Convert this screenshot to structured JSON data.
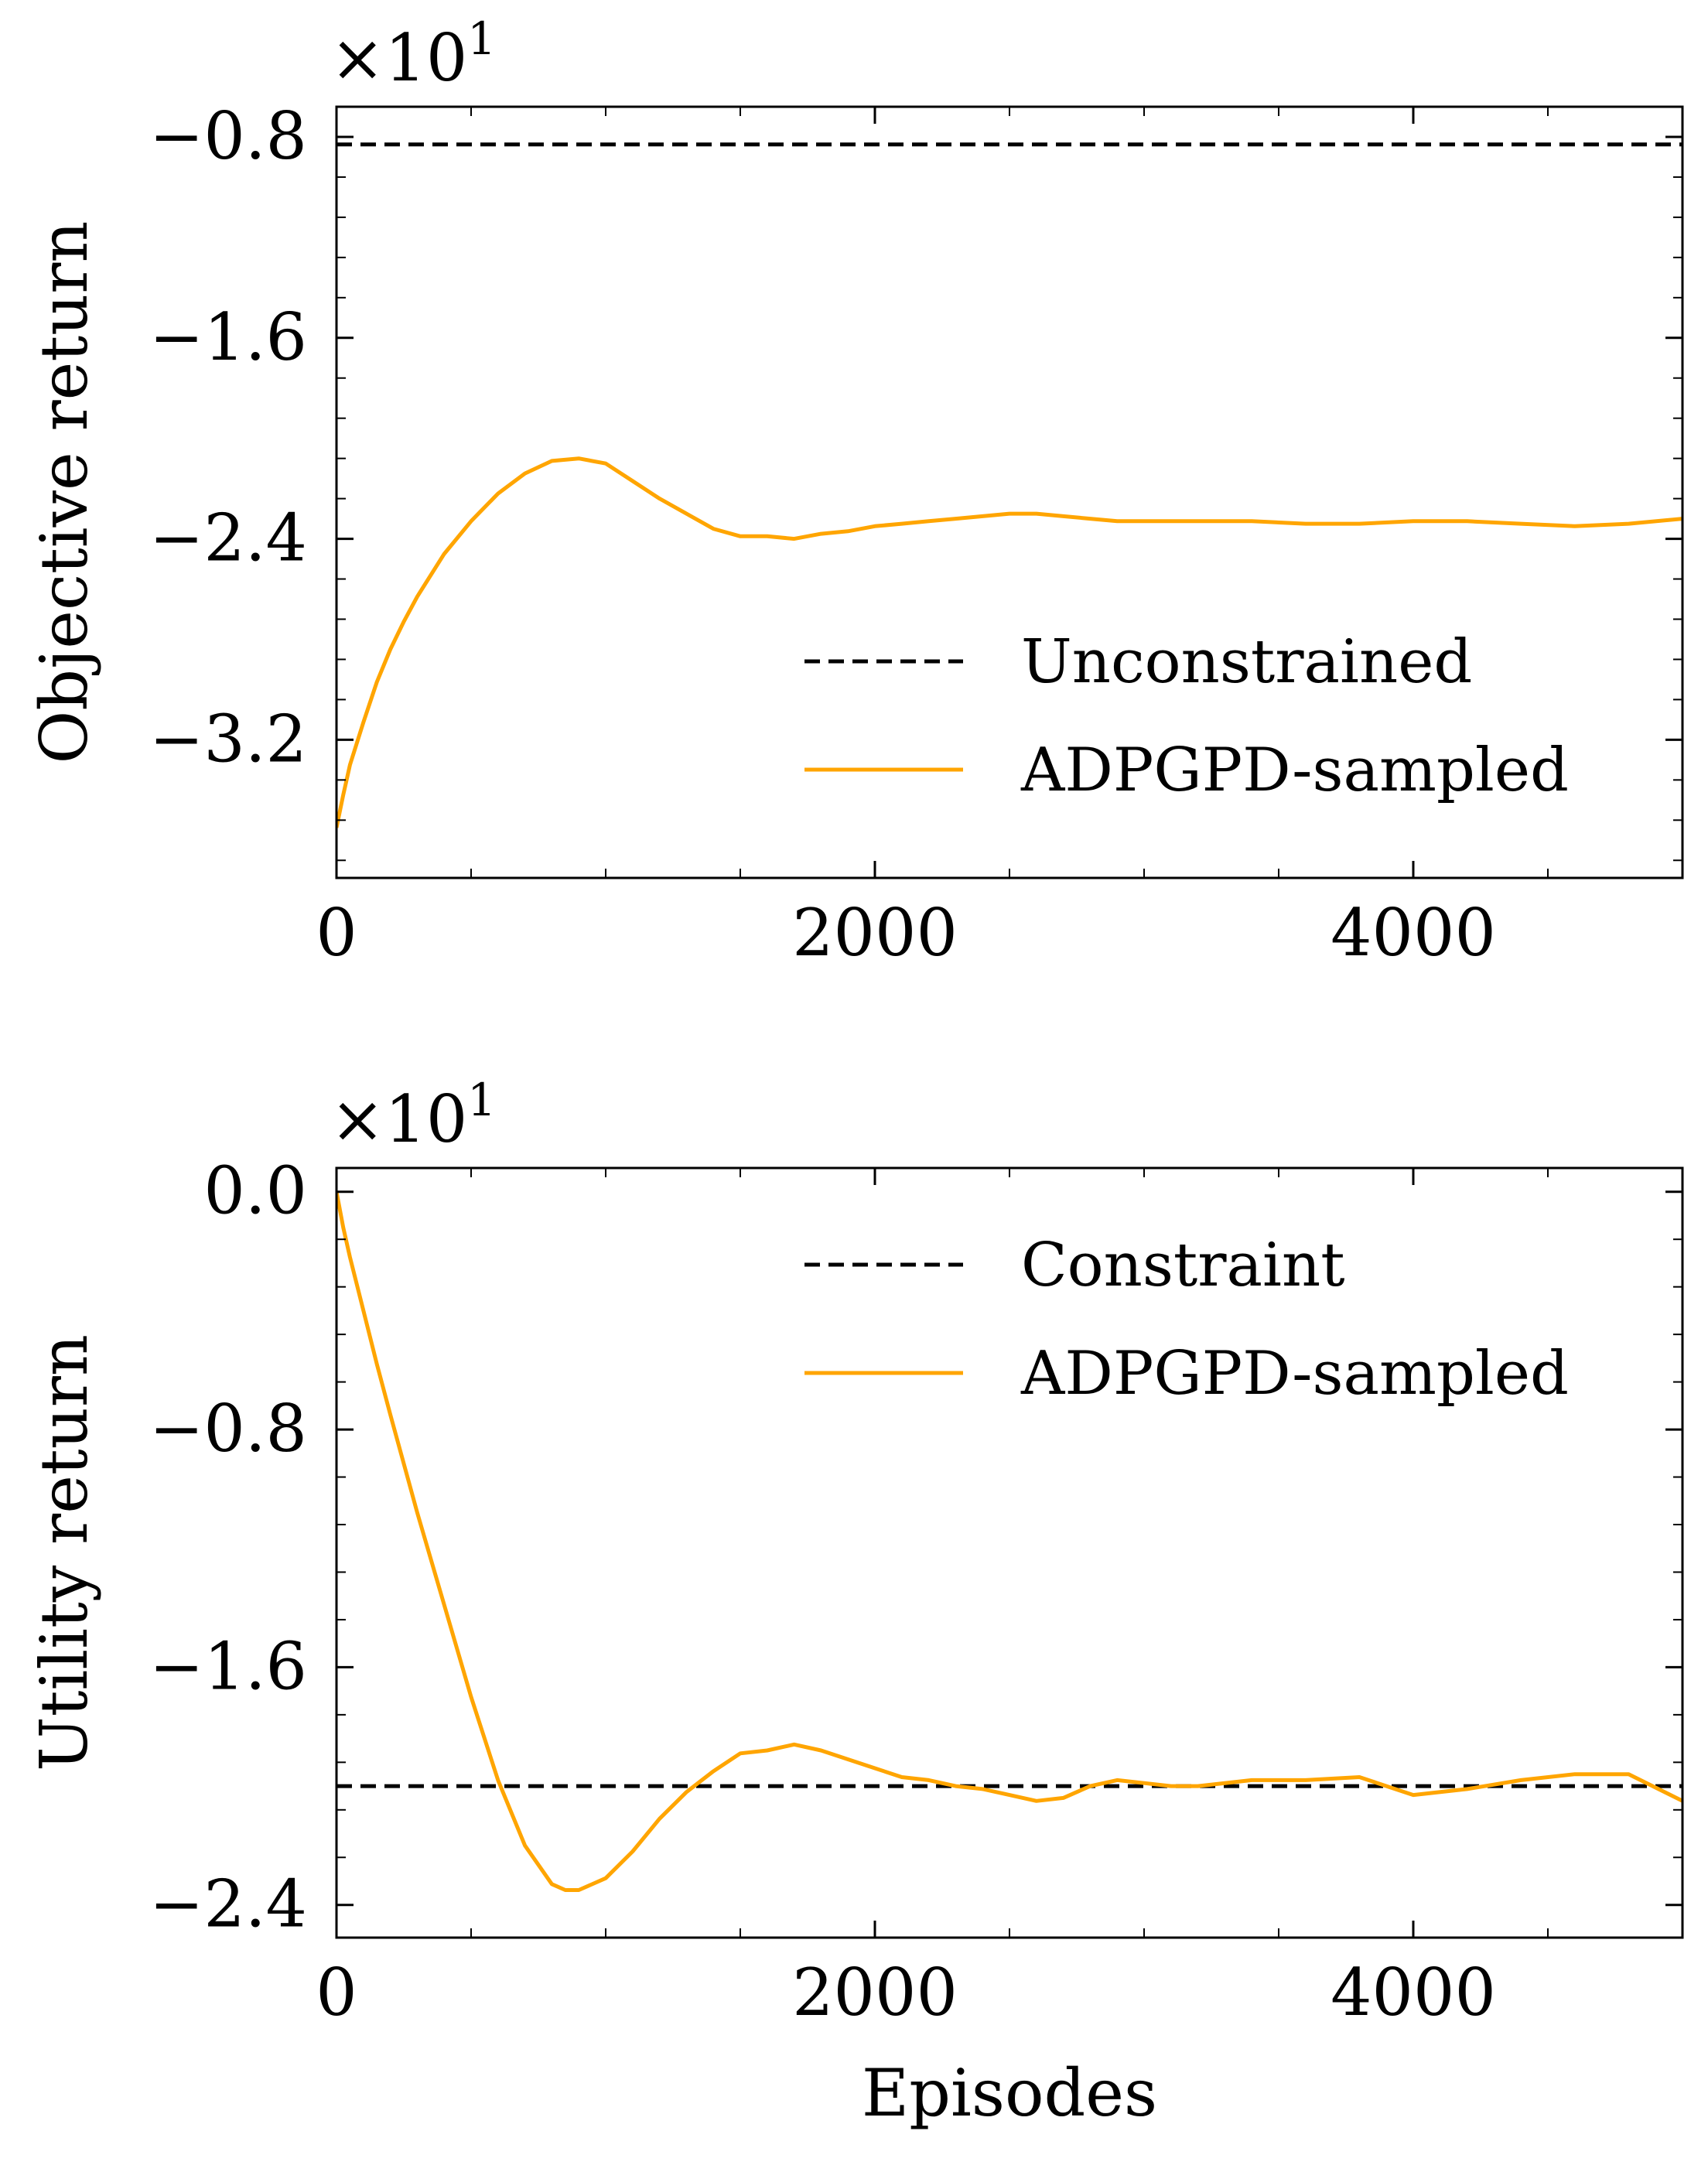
{
  "chart_data": [
    {
      "type": "line",
      "ylabel": "Objective return",
      "xlabel": "",
      "y_offset_text": "×10",
      "y_offset_exp": "1",
      "xlim": [
        0,
        5000
      ],
      "ylim": [
        -3.75,
        -0.68
      ],
      "xticks": [
        0,
        2000,
        4000
      ],
      "xtick_labels": [
        "0",
        "2000",
        "4000"
      ],
      "yticks": [
        -0.8,
        -1.6,
        -2.4,
        -3.2
      ],
      "ytick_labels": [
        "−0.8",
        "−1.6",
        "−2.4",
        "−3.2"
      ],
      "legend_position": "lower-right",
      "grid": false,
      "series": [
        {
          "name": "Unconstrained",
          "style": "dashed",
          "color": "#000000",
          "x": [
            0,
            5000
          ],
          "y": [
            -0.83,
            -0.83
          ]
        },
        {
          "name": "ADPGPD-sampled",
          "style": "solid",
          "color": "#FFA500",
          "x": [
            0,
            25,
            50,
            100,
            150,
            200,
            250,
            300,
            400,
            500,
            600,
            700,
            800,
            900,
            1000,
            1100,
            1200,
            1300,
            1400,
            1500,
            1600,
            1700,
            1800,
            1900,
            2000,
            2100,
            2200,
            2300,
            2400,
            2500,
            2600,
            2700,
            2800,
            2900,
            3000,
            3200,
            3400,
            3600,
            3800,
            4000,
            4200,
            4400,
            4600,
            4800,
            5000
          ],
          "y": [
            -3.55,
            -3.42,
            -3.3,
            -3.13,
            -2.97,
            -2.84,
            -2.73,
            -2.63,
            -2.46,
            -2.33,
            -2.22,
            -2.14,
            -2.09,
            -2.08,
            -2.1,
            -2.17,
            -2.24,
            -2.3,
            -2.36,
            -2.39,
            -2.39,
            -2.4,
            -2.38,
            -2.37,
            -2.35,
            -2.34,
            -2.33,
            -2.32,
            -2.31,
            -2.3,
            -2.3,
            -2.31,
            -2.32,
            -2.33,
            -2.33,
            -2.33,
            -2.33,
            -2.34,
            -2.34,
            -2.33,
            -2.33,
            -2.34,
            -2.35,
            -2.34,
            -2.32
          ]
        }
      ]
    },
    {
      "type": "line",
      "ylabel": "Utility return",
      "xlabel": "Episodes",
      "y_offset_text": "×10",
      "y_offset_exp": "1",
      "xlim": [
        0,
        5000
      ],
      "ylim": [
        -2.51,
        0.08
      ],
      "xticks": [
        0,
        2000,
        4000
      ],
      "xtick_labels": [
        "0",
        "2000",
        "4000"
      ],
      "yticks": [
        0.0,
        -0.8,
        -1.6,
        -2.4
      ],
      "ytick_labels": [
        "0.0",
        "−0.8",
        "−1.6",
        "−2.4"
      ],
      "legend_position": "upper-right",
      "grid": false,
      "series": [
        {
          "name": "Constraint",
          "style": "dashed",
          "color": "#000000",
          "x": [
            0,
            5000
          ],
          "y": [
            -2.0,
            -2.0
          ]
        },
        {
          "name": "ADPGPD-sampled",
          "style": "solid",
          "color": "#FFA500",
          "x": [
            0,
            25,
            50,
            100,
            150,
            200,
            300,
            400,
            500,
            600,
            700,
            800,
            850,
            900,
            1000,
            1100,
            1200,
            1300,
            1400,
            1500,
            1600,
            1700,
            1800,
            1900,
            2000,
            2100,
            2200,
            2300,
            2400,
            2500,
            2600,
            2700,
            2800,
            2900,
            3000,
            3100,
            3200,
            3400,
            3600,
            3800,
            4000,
            4200,
            4400,
            4600,
            4800,
            5000
          ],
          "y": [
            0.0,
            -0.12,
            -0.22,
            -0.4,
            -0.58,
            -0.75,
            -1.08,
            -1.39,
            -1.7,
            -1.98,
            -2.2,
            -2.33,
            -2.35,
            -2.35,
            -2.31,
            -2.22,
            -2.11,
            -2.02,
            -1.95,
            -1.89,
            -1.88,
            -1.86,
            -1.88,
            -1.91,
            -1.94,
            -1.97,
            -1.98,
            -2.0,
            -2.01,
            -2.03,
            -2.05,
            -2.04,
            -2.0,
            -1.98,
            -1.99,
            -2.0,
            -2.0,
            -1.98,
            -1.98,
            -1.97,
            -2.03,
            -2.01,
            -1.98,
            -1.96,
            -1.96,
            -2.05
          ]
        }
      ]
    }
  ]
}
